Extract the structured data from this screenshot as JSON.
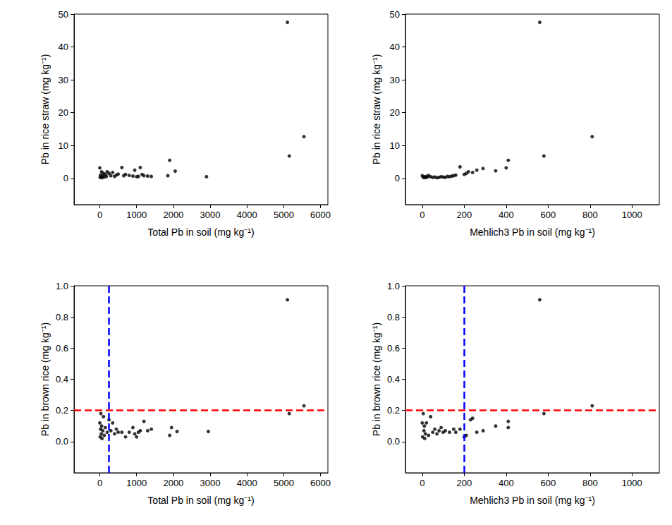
{
  "chart_data": [
    {
      "type": "scatter",
      "xlabel": "Total Pb in soil (mg kg⁻¹)",
      "ylabel": "Pb in rice straw (mg kg⁻¹)",
      "color": "#000000",
      "marker": "circle",
      "xlim": [
        -700,
        6200
      ],
      "xticks": [
        0,
        1000,
        2000,
        3000,
        4000,
        5000,
        6000
      ],
      "ylim": [
        -8,
        50
      ],
      "yticks": [
        0,
        10,
        20,
        30,
        40,
        50
      ],
      "x": [
        0,
        10,
        20,
        30,
        50,
        60,
        80,
        100,
        120,
        150,
        180,
        200,
        250,
        300,
        350,
        400,
        450,
        500,
        600,
        650,
        700,
        800,
        900,
        950,
        1000,
        1050,
        1100,
        1150,
        1200,
        1300,
        1400,
        1850,
        1900,
        2050,
        2900,
        5100,
        5150,
        5550
      ],
      "values": [
        3.2,
        0.3,
        1.0,
        0.5,
        2.0,
        0.2,
        0.8,
        1.5,
        0.4,
        1.2,
        0.6,
        2.0,
        1.5,
        0.8,
        1.8,
        0.6,
        1.0,
        1.3,
        3.3,
        0.8,
        1.2,
        0.9,
        0.7,
        2.5,
        0.5,
        0.6,
        3.3,
        1.2,
        0.8,
        0.7,
        0.6,
        0.8,
        5.5,
        2.2,
        0.5,
        47.5,
        6.8,
        12.7
      ],
      "reference_lines": []
    },
    {
      "type": "scatter",
      "xlabel": "Mehlich3 Pb in soil (mg kg⁻¹)",
      "ylabel": "Pb in rice straw (mg kg⁻¹)",
      "color": "#000000",
      "marker": "circle",
      "xlim": [
        -80,
        1130
      ],
      "xticks": [
        0,
        200,
        400,
        600,
        800,
        1000
      ],
      "ylim": [
        -8,
        50
      ],
      "yticks": [
        0,
        10,
        20,
        30,
        40,
        50
      ],
      "x": [
        0,
        5,
        10,
        15,
        20,
        25,
        30,
        40,
        50,
        60,
        70,
        80,
        90,
        100,
        110,
        120,
        130,
        140,
        150,
        160,
        180,
        200,
        210,
        220,
        240,
        260,
        290,
        350,
        400,
        410,
        560,
        580,
        810
      ],
      "values": [
        0.8,
        0.3,
        0.5,
        0.2,
        0.6,
        0.4,
        0.9,
        0.5,
        0.3,
        0.4,
        0.2,
        0.3,
        0.5,
        0.4,
        0.3,
        0.6,
        0.5,
        0.7,
        0.8,
        1.0,
        3.5,
        1.2,
        1.5,
        2.0,
        1.8,
        2.5,
        3.0,
        2.3,
        3.2,
        5.5,
        47.5,
        6.8,
        12.7
      ],
      "reference_lines": []
    },
    {
      "type": "scatter",
      "xlabel": "Total Pb in soil (mg kg⁻¹)",
      "ylabel": "Pb in brown rice (mg kg⁻¹)",
      "color": "#000000",
      "marker": "circle",
      "xlim": [
        -700,
        6200
      ],
      "xticks": [
        0,
        1000,
        2000,
        3000,
        4000,
        5000,
        6000
      ],
      "ylim": [
        -0.2,
        1.0
      ],
      "yticks": [
        {
          "value": 0,
          "label": "0.0"
        },
        0.2,
        0.4,
        0.6,
        0.8,
        {
          "value": 1,
          "label": "1.0"
        }
      ],
      "x": [
        0,
        10,
        20,
        30,
        40,
        50,
        60,
        80,
        100,
        120,
        150,
        200,
        250,
        300,
        350,
        400,
        450,
        500,
        600,
        700,
        800,
        900,
        950,
        1000,
        1050,
        1100,
        1200,
        1300,
        1400,
        1900,
        1950,
        2100,
        2950,
        5100,
        5150,
        5550
      ],
      "values": [
        0.12,
        0.03,
        0.08,
        0.18,
        0.05,
        0.1,
        0.02,
        0.07,
        0.16,
        0.04,
        0.09,
        0.06,
        0.14,
        0.07,
        0.12,
        0.05,
        0.08,
        0.06,
        0.06,
        0.03,
        0.06,
        0.09,
        0.05,
        0.03,
        0.06,
        0.07,
        0.13,
        0.07,
        0.08,
        0.04,
        0.09,
        0.065,
        0.065,
        0.91,
        0.18,
        0.23
      ],
      "reference_lines": [
        {
          "axis": "y",
          "value": 0.2,
          "color": "#ff0000",
          "line_style": "dashed"
        },
        {
          "axis": "x",
          "value": 250,
          "color": "#0000ff",
          "line_style": "dashed"
        }
      ]
    },
    {
      "type": "scatter",
      "xlabel": "Mehlich3 Pb in soil (mg kg⁻¹)",
      "ylabel": "Pb in brown rice (mg kg⁻¹)",
      "color": "#000000",
      "marker": "circle",
      "xlim": [
        -80,
        1130
      ],
      "xticks": [
        0,
        200,
        400,
        600,
        800,
        1000
      ],
      "ylim": [
        -0.2,
        1.0
      ],
      "yticks": [
        {
          "value": 0,
          "label": "0.0"
        },
        0.2,
        0.4,
        0.6,
        0.8,
        {
          "value": 1,
          "label": "1.0"
        }
      ],
      "x": [
        0,
        2,
        5,
        8,
        10,
        12,
        15,
        20,
        30,
        40,
        50,
        60,
        70,
        80,
        90,
        100,
        110,
        130,
        150,
        160,
        180,
        200,
        210,
        230,
        240,
        260,
        290,
        350,
        410,
        410,
        560,
        580,
        810
      ],
      "values": [
        0.12,
        0.03,
        0.18,
        0.07,
        0.1,
        0.02,
        0.05,
        0.12,
        0.04,
        0.16,
        0.06,
        0.08,
        0.05,
        0.07,
        0.09,
        0.06,
        0.07,
        0.06,
        0.08,
        0.06,
        0.08,
        0.03,
        0.04,
        0.14,
        0.15,
        0.06,
        0.07,
        0.1,
        0.13,
        0.09,
        0.91,
        0.18,
        0.23
      ],
      "reference_lines": [
        {
          "axis": "y",
          "value": 0.2,
          "color": "#ff0000",
          "line_style": "dashed"
        },
        {
          "axis": "x",
          "value": 200,
          "color": "#0000ff",
          "line_style": "dashed"
        }
      ]
    }
  ]
}
